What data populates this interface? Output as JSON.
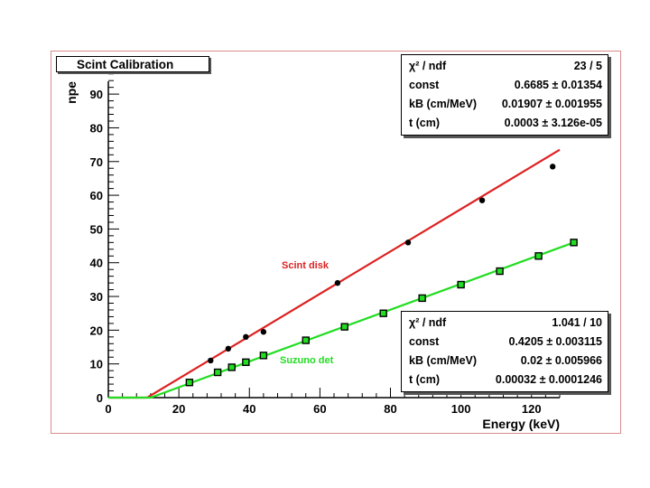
{
  "chart_data": {
    "type": "scatter",
    "title": "Scint Calibration",
    "xlabel": "Energy (keV)",
    "ylabel": "npe",
    "xlim": [
      0,
      128
    ],
    "ylim": [
      0,
      97
    ],
    "xticks": [
      "0",
      "20",
      "40",
      "60",
      "80",
      "100",
      "120"
    ],
    "yticks": [
      "0",
      "10",
      "20",
      "30",
      "40",
      "50",
      "60",
      "70",
      "80",
      "90"
    ],
    "series": [
      {
        "name": "Scint disk",
        "color": "#dd2222",
        "points": [
          {
            "x": 29,
            "y": 11
          },
          {
            "x": 34,
            "y": 14.5
          },
          {
            "x": 39,
            "y": 18
          },
          {
            "x": 44,
            "y": 19.5
          },
          {
            "x": 65,
            "y": 34
          },
          {
            "x": 85,
            "y": 46
          },
          {
            "x": 106,
            "y": 58.5
          },
          {
            "x": 126,
            "y": 68.5
          }
        ],
        "fit": [
          {
            "x": 0,
            "y": 0
          },
          {
            "x": 11,
            "y": 0
          },
          {
            "x": 128,
            "y": 73.5
          }
        ]
      },
      {
        "name": "Suzuno det",
        "color": "#22dd22",
        "points": [
          {
            "x": 23,
            "y": 4.5
          },
          {
            "x": 31,
            "y": 7.5
          },
          {
            "x": 35,
            "y": 9
          },
          {
            "x": 39,
            "y": 10.5
          },
          {
            "x": 44,
            "y": 12.5
          },
          {
            "x": 56,
            "y": 17
          },
          {
            "x": 67,
            "y": 21
          },
          {
            "x": 78,
            "y": 25
          },
          {
            "x": 89,
            "y": 29.5
          },
          {
            "x": 100,
            "y": 33.5
          },
          {
            "x": 111,
            "y": 37.5
          },
          {
            "x": 122,
            "y": 42
          },
          {
            "x": 132,
            "y": 46
          }
        ],
        "fit": [
          {
            "x": 0,
            "y": 0
          },
          {
            "x": 12,
            "y": 0
          },
          {
            "x": 132,
            "y": 46
          }
        ]
      }
    ],
    "stats": [
      {
        "rows": [
          {
            "label": "χ² / ndf",
            "value": "23 / 5"
          },
          {
            "label": "const",
            "value": "0.6685 ± 0.01354"
          },
          {
            "label": "kB (cm/MeV)",
            "value": "0.01907 ± 0.001955"
          },
          {
            "label": "t (cm)",
            "value": "0.0003 ± 3.126e-05"
          }
        ]
      },
      {
        "rows": [
          {
            "label": "χ² / ndf",
            "value": "1.041 / 10"
          },
          {
            "label": "const",
            "value": "0.4205 ± 0.003115"
          },
          {
            "label": "kB (cm/MeV)",
            "value": "0.02 ± 0.005966"
          },
          {
            "label": "t (cm)",
            "value": "0.00032 ± 0.0001246"
          }
        ]
      }
    ]
  }
}
